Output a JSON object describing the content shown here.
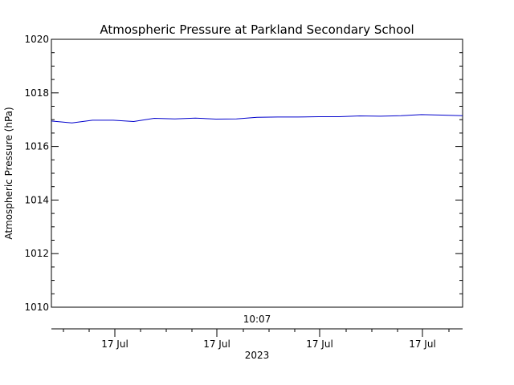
{
  "chart_data": {
    "type": "line",
    "title": "Atmospheric Pressure at Parkland Secondary School",
    "ylabel": "Atmospheric Pressure (hPa)",
    "ylim": [
      1010,
      1020
    ],
    "y_ticks": [
      1010,
      1012,
      1014,
      1016,
      1018,
      1020
    ],
    "y_minor_step": 0.5,
    "time_label": "10:07",
    "x_tick_labels": [
      "17 Jul",
      "17 Jul",
      "17 Jul",
      "17 Jul"
    ],
    "year_label": "2023",
    "grid": false,
    "line_color": "#0000cc",
    "series": [
      {
        "values": [
          1016.95,
          1016.88,
          1016.98,
          1016.98,
          1016.93,
          1017.05,
          1017.03,
          1017.06,
          1017.02,
          1017.03,
          1017.09,
          1017.1,
          1017.1,
          1017.11,
          1017.11,
          1017.14,
          1017.13,
          1017.15,
          1017.19,
          1017.17,
          1017.15
        ]
      }
    ]
  }
}
